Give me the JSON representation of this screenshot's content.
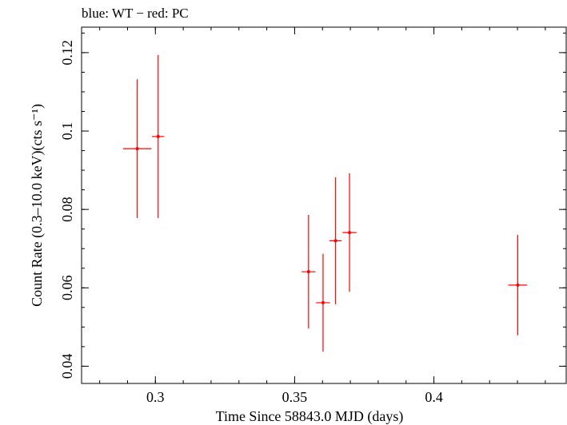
{
  "chart_data": {
    "type": "scatter",
    "title": "blue: WT − red: PC",
    "xlabel": "Time Since 58843.0 MJD (days)",
    "ylabel": "Count Rate (0.3–10.0 keV)(cts s⁻¹)",
    "xlim": [
      0.2735,
      0.4475
    ],
    "ylim": [
      0.0356,
      0.1265
    ],
    "x_ticks": [
      0.3,
      0.35,
      0.4
    ],
    "x_tick_labels": [
      "0.3",
      "0.35",
      "0.4"
    ],
    "y_ticks": [
      0.04,
      0.06,
      0.08,
      0.1,
      0.12
    ],
    "y_tick_labels": [
      "0.04",
      "0.06",
      "0.08",
      "0.1",
      "0.12"
    ],
    "grid": false,
    "series": [
      {
        "name": "PC",
        "color": "#ff0000",
        "points": [
          {
            "x": 0.2935,
            "y": 0.0955,
            "xerr_lo": 0.0051,
            "xerr_hi": 0.0051,
            "yerr_lo": 0.0177,
            "yerr_hi": 0.0177
          },
          {
            "x": 0.301,
            "y": 0.0986,
            "xerr_lo": 0.0022,
            "xerr_hi": 0.0022,
            "yerr_lo": 0.0208,
            "yerr_hi": 0.0208
          },
          {
            "x": 0.355,
            "y": 0.0641,
            "xerr_lo": 0.0025,
            "xerr_hi": 0.0025,
            "yerr_lo": 0.0145,
            "yerr_hi": 0.0145
          },
          {
            "x": 0.3602,
            "y": 0.0562,
            "xerr_lo": 0.0025,
            "xerr_hi": 0.0025,
            "yerr_lo": 0.0125,
            "yerr_hi": 0.0125
          },
          {
            "x": 0.3647,
            "y": 0.072,
            "xerr_lo": 0.0022,
            "xerr_hi": 0.0022,
            "yerr_lo": 0.0162,
            "yerr_hi": 0.0162
          },
          {
            "x": 0.3697,
            "y": 0.0741,
            "xerr_lo": 0.0025,
            "xerr_hi": 0.0025,
            "yerr_lo": 0.0151,
            "yerr_hi": 0.0151
          },
          {
            "x": 0.4301,
            "y": 0.0607,
            "xerr_lo": 0.0034,
            "xerr_hi": 0.0034,
            "yerr_lo": 0.0128,
            "yerr_hi": 0.0128
          }
        ]
      }
    ]
  }
}
